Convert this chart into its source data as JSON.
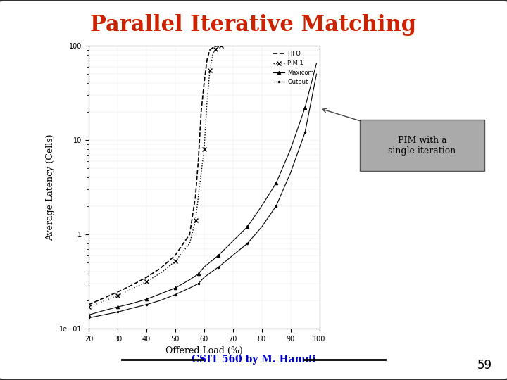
{
  "title": "Parallel Iterative Matching",
  "title_color": "#cc2200",
  "xlabel": "Offered Load (%)",
  "ylabel": "Average Latency (Cells)",
  "xlim": [
    20,
    100
  ],
  "ylim_log": [
    0.1,
    100
  ],
  "background_color": "#ffffff",
  "slide_background": "#d0d0d0",
  "annotation_text": "PIM with a\nsingle iteration",
  "annotation_box_color": "#aaaaaa",
  "footer_text": "CSIT 560 by M. Hamdi",
  "slide_number": "59",
  "legend_labels": [
    "FIFO",
    "PIM 1",
    "Maxicom",
    "Output"
  ],
  "load_common": [
    20,
    25,
    30,
    35,
    40,
    45,
    50,
    55,
    58,
    60,
    65,
    70,
    75,
    80,
    85,
    90,
    95,
    99
  ],
  "load_fifo": [
    20,
    25,
    30,
    35,
    40,
    45,
    50,
    55,
    57,
    58,
    59,
    60,
    61,
    62,
    63,
    64,
    65,
    66
  ],
  "load_pim1": [
    20,
    25,
    30,
    35,
    40,
    45,
    50,
    55,
    57,
    58,
    60,
    61,
    62,
    63,
    64,
    65,
    66,
    67
  ],
  "output_y": [
    0.13,
    0.14,
    0.15,
    0.165,
    0.18,
    0.2,
    0.23,
    0.27,
    0.3,
    0.35,
    0.45,
    0.6,
    0.8,
    1.2,
    2.0,
    4.5,
    12,
    50
  ],
  "maxicom_y": [
    0.14,
    0.155,
    0.17,
    0.185,
    0.205,
    0.235,
    0.27,
    0.33,
    0.38,
    0.45,
    0.6,
    0.85,
    1.2,
    2.0,
    3.5,
    8.0,
    22,
    65
  ],
  "fifo_y": [
    0.18,
    0.21,
    0.245,
    0.29,
    0.35,
    0.44,
    0.6,
    1.0,
    2.5,
    6.0,
    20,
    40,
    70,
    90,
    95,
    98,
    99,
    100
  ],
  "pim1_y": [
    0.17,
    0.195,
    0.225,
    0.265,
    0.315,
    0.39,
    0.52,
    0.8,
    1.4,
    2.5,
    8.0,
    25,
    55,
    80,
    92,
    97,
    99,
    100
  ]
}
